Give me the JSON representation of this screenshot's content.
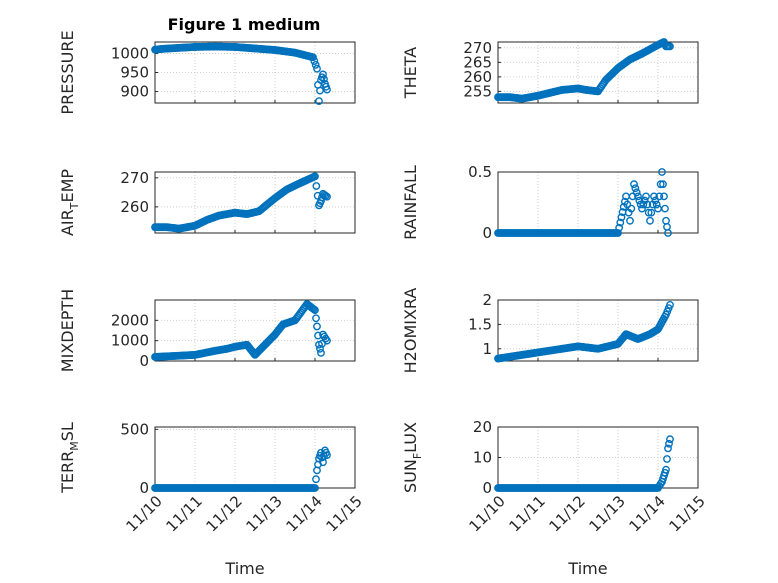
{
  "figure": {
    "title": "Figure 1 medium",
    "xlabel": "Time",
    "marker_color": "#0072bd",
    "grid_color": "#cfcfcf"
  },
  "chart_data": [
    {
      "type": "scatter",
      "ylabel": "PRESSURE",
      "title": "Figure 1 medium",
      "xlim": [
        "11/10",
        "11/15"
      ],
      "ylim": [
        870,
        1030
      ],
      "yticks": [
        900,
        950,
        1000
      ],
      "x": [
        10.0,
        10.2,
        10.5,
        11.0,
        11.5,
        12.0,
        12.5,
        13.0,
        13.5,
        13.95,
        14.05,
        14.1,
        14.15,
        14.2,
        14.25,
        14.3
      ],
      "y": [
        1010,
        1012,
        1014,
        1017,
        1018,
        1017,
        1013,
        1009,
        1002,
        990,
        960,
        875,
        930,
        945,
        920,
        905
      ]
    },
    {
      "type": "scatter",
      "ylabel": "THETA",
      "xlim": [
        "11/10",
        "11/15"
      ],
      "ylim": [
        251,
        272
      ],
      "yticks": [
        255,
        260,
        265,
        270
      ],
      "x": [
        10.0,
        10.3,
        10.6,
        11.0,
        11.3,
        11.6,
        12.0,
        12.2,
        12.5,
        12.7,
        13.0,
        13.3,
        13.6,
        14.0,
        14.15,
        14.2,
        14.3
      ],
      "y": [
        253,
        253,
        252.5,
        253.5,
        254.5,
        255.5,
        256,
        255.5,
        255,
        259,
        263,
        266,
        268,
        271,
        272,
        270.5,
        270.5
      ]
    },
    {
      "type": "scatter",
      "ylabel": "AIR_TEMP",
      "xlim": [
        "11/10",
        "11/15"
      ],
      "ylim": [
        251,
        272
      ],
      "yticks": [
        260,
        270
      ],
      "x": [
        10.0,
        10.3,
        10.6,
        11.0,
        11.3,
        11.6,
        12.0,
        12.3,
        12.6,
        13.0,
        13.3,
        13.6,
        14.0,
        14.1,
        14.15,
        14.2,
        14.3
      ],
      "y": [
        253,
        253,
        252.5,
        253.5,
        255.5,
        257,
        258,
        257.5,
        258.5,
        263,
        266,
        268,
        270.5,
        260.5,
        262,
        264.5,
        263.5
      ]
    },
    {
      "type": "scatter",
      "ylabel": "RAINFALL",
      "xlim": [
        "11/10",
        "11/15"
      ],
      "ylim": [
        0,
        0.5
      ],
      "yticks": [
        0,
        0.5
      ],
      "x": [
        10.0,
        11.0,
        12.0,
        13.0,
        13.2,
        13.3,
        13.4,
        13.5,
        13.6,
        13.7,
        13.8,
        13.9,
        14.0,
        14.1,
        14.15,
        14.2,
        14.25
      ],
      "y": [
        0,
        0,
        0,
        0,
        0.3,
        0.1,
        0.4,
        0.3,
        0.2,
        0.3,
        0.1,
        0.3,
        0.2,
        0.5,
        0.3,
        0.1,
        0
      ]
    },
    {
      "type": "scatter",
      "ylabel": "MIXDEPTH",
      "xlim": [
        "11/10",
        "11/15"
      ],
      "ylim": [
        0,
        3000
      ],
      "yticks": [
        0,
        1000,
        2000
      ],
      "x": [
        10.0,
        10.5,
        11.0,
        11.5,
        11.8,
        12.0,
        12.3,
        12.5,
        12.8,
        13.0,
        13.2,
        13.5,
        13.8,
        14.0,
        14.05,
        14.1,
        14.15,
        14.2,
        14.3
      ],
      "y": [
        200,
        250,
        300,
        500,
        600,
        700,
        800,
        300,
        900,
        1300,
        1800,
        2000,
        2800,
        2500,
        1700,
        800,
        400,
        1300,
        1000
      ]
    },
    {
      "type": "scatter",
      "ylabel": "H2OMIXRA",
      "xlim": [
        "11/10",
        "11/15"
      ],
      "ylim": [
        0.75,
        2.0
      ],
      "yticks": [
        1,
        1.5,
        2
      ],
      "x": [
        10.0,
        10.4,
        10.8,
        11.2,
        11.6,
        12.0,
        12.5,
        13.0,
        13.2,
        13.5,
        13.8,
        14.0,
        14.2,
        14.3
      ],
      "y": [
        0.8,
        0.85,
        0.9,
        0.95,
        1.0,
        1.05,
        1.0,
        1.1,
        1.3,
        1.2,
        1.3,
        1.4,
        1.7,
        1.9
      ]
    },
    {
      "type": "scatter",
      "ylabel": "TERR_MSL",
      "xlim": [
        "11/10",
        "11/15"
      ],
      "ylim": [
        0,
        520
      ],
      "yticks": [
        0,
        500
      ],
      "x": [
        10.0,
        11.0,
        12.0,
        13.0,
        14.0,
        14.05,
        14.1,
        14.15,
        14.2,
        14.25,
        14.3
      ],
      "y": [
        0,
        0,
        0,
        0,
        0,
        150,
        250,
        300,
        220,
        320,
        280
      ]
    },
    {
      "type": "scatter",
      "ylabel": "SUN_FLUX",
      "xlim": [
        "11/10",
        "11/15"
      ],
      "ylim": [
        0,
        20
      ],
      "yticks": [
        0,
        10,
        20
      ],
      "x": [
        10.0,
        11.0,
        12.0,
        13.0,
        14.0,
        14.1,
        14.15,
        14.2,
        14.25,
        14.3
      ],
      "y": [
        0,
        0,
        0,
        0,
        0,
        2,
        4,
        6,
        13,
        16
      ]
    }
  ]
}
